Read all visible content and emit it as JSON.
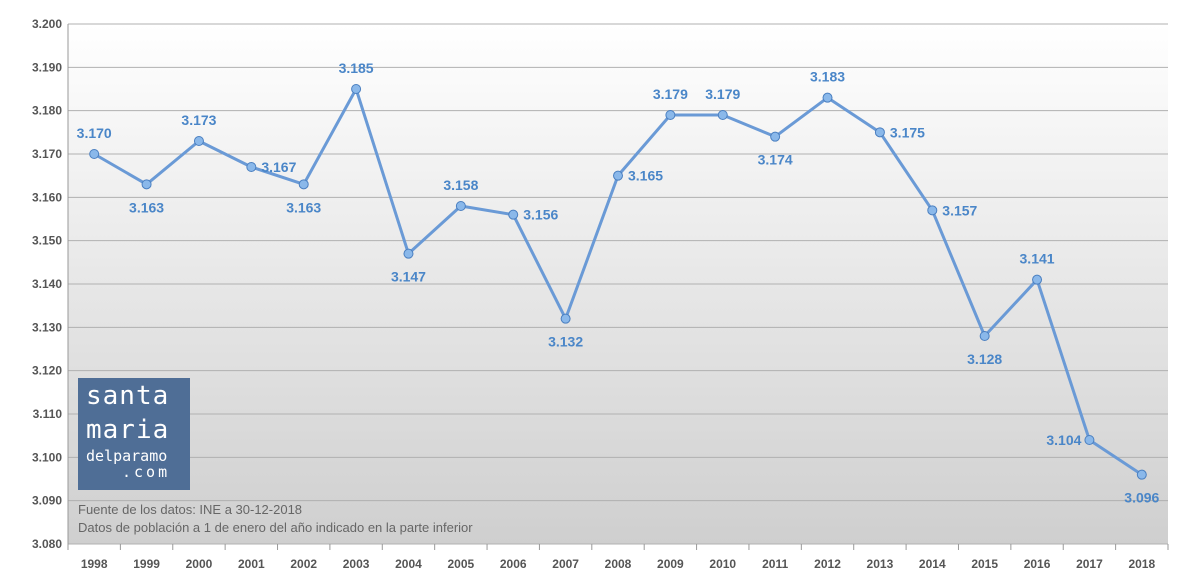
{
  "chart_data": {
    "type": "line",
    "title": "",
    "xlabel": "",
    "ylabel": "",
    "categories": [
      "1998",
      "1999",
      "2000",
      "2001",
      "2002",
      "2003",
      "2004",
      "2005",
      "2006",
      "2007",
      "2008",
      "2009",
      "2010",
      "2011",
      "2012",
      "2013",
      "2014",
      "2015",
      "2016",
      "2017",
      "2018"
    ],
    "values": [
      3170,
      3163,
      3173,
      3167,
      3163,
      3185,
      3147,
      3158,
      3156,
      3132,
      3165,
      3179,
      3179,
      3174,
      3183,
      3175,
      3157,
      3128,
      3141,
      3104,
      3096
    ],
    "value_labels": [
      "3.170",
      "3.163",
      "3.173",
      "3.167",
      "3.163",
      "3.185",
      "3.147",
      "3.158",
      "3.156",
      "3.132",
      "3.165",
      "3.179",
      "3.179",
      "3.174",
      "3.183",
      "3.175",
      "3.157",
      "3.128",
      "3.141",
      "3.104",
      "3.096"
    ],
    "ylim": [
      3080,
      3200
    ],
    "y_ticks": [
      3080,
      3090,
      3100,
      3110,
      3120,
      3130,
      3140,
      3150,
      3160,
      3170,
      3180,
      3190,
      3200
    ],
    "y_tick_labels": [
      "3.080",
      "3.090",
      "3.100",
      "3.110",
      "3.120",
      "3.130",
      "3.140",
      "3.150",
      "3.160",
      "3.170",
      "3.180",
      "3.190",
      "3.200"
    ],
    "grid": true,
    "legend": "none",
    "colors": {
      "line": "#6a9ad6",
      "marker": "#8ab8ea",
      "label": "#4a86c8",
      "grid": "#b0b0b0",
      "logo_bg": "#4f6e96"
    }
  },
  "notes": {
    "source": "Fuente de los datos: INE a 30-12-2018",
    "description": "Datos de población a 1 de enero del año indicado en la parte inferior"
  },
  "logo": {
    "line1": "santa",
    "line2": "maria",
    "line3": "delparamo",
    "line4": ".com"
  }
}
